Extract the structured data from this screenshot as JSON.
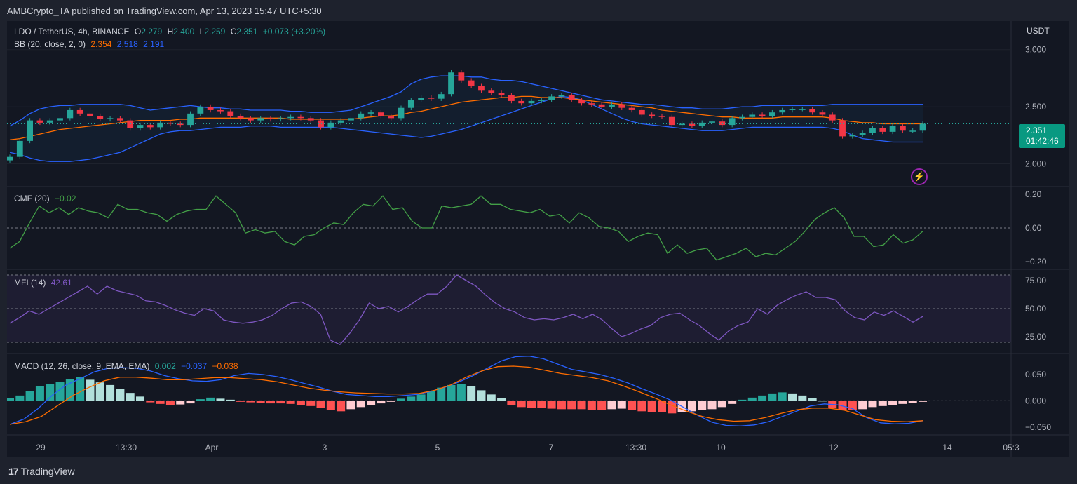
{
  "header": {
    "publish_text": "AMBCrypto_TA published on TradingView.com, Apr 13, 2023 15:47 UTC+5:30"
  },
  "main": {
    "symbol": "LDO / TetherUS, 4h, BINANCE",
    "o_label": "O",
    "o_val": "2.279",
    "h_label": "H",
    "h_val": "2.400",
    "l_label": "L",
    "l_val": "2.259",
    "c_label": "C",
    "c_val": "2.351",
    "change": "+0.073 (+3.20%)",
    "bb_label": "BB (20, close, 2, 0)",
    "bb_basis": "2.354",
    "bb_upper": "2.518",
    "bb_lower": "2.191",
    "currency": "USDT",
    "price_tag": "2.351",
    "countdown": "01:42:46"
  },
  "cmf": {
    "label": "CMF (20)",
    "value": "−0.02"
  },
  "mfi": {
    "label": "MFI (14)",
    "value": "42.61"
  },
  "macd": {
    "label": "MACD (12, 26, close, 9, EMA, EMA)",
    "macd_val": "0.002",
    "signal_val": "−0.037",
    "hist_val": "−0.038"
  },
  "footer": {
    "brand": "TradingView",
    "logo": "17"
  },
  "colors": {
    "up": "#26a69a",
    "down": "#f23645",
    "bb_band": "#2962ff",
    "bb_basis": "#ff6d00",
    "cmf": "#43a047",
    "mfi": "#7e57c2",
    "macd": "#2962ff",
    "signal": "#ff6d00"
  },
  "chart_data": [
    {
      "type": "candlestick",
      "title": "LDO / TetherUS, 4h, BINANCE",
      "ylim": [
        1.8,
        3.25
      ],
      "yticks": [
        "3.000",
        "2.500",
        "2.000"
      ],
      "xticks": [
        "29",
        "13:30",
        "Apr",
        "3",
        "5",
        "7",
        "13:30",
        "10",
        "12",
        "14",
        "05:3"
      ],
      "close": [
        2.06,
        2.2,
        2.38,
        2.36,
        2.38,
        2.4,
        2.47,
        2.44,
        2.42,
        2.39,
        2.4,
        2.38,
        2.31,
        2.34,
        2.32,
        2.36,
        2.35,
        2.34,
        2.44,
        2.5,
        2.47,
        2.46,
        2.42,
        2.4,
        2.38,
        2.4,
        2.39,
        2.4,
        2.41,
        2.4,
        2.38,
        2.32,
        2.36,
        2.38,
        2.4,
        2.44,
        2.45,
        2.42,
        2.4,
        2.49,
        2.56,
        2.58,
        2.57,
        2.61,
        2.8,
        2.73,
        2.68,
        2.64,
        2.62,
        2.6,
        2.55,
        2.53,
        2.55,
        2.56,
        2.59,
        2.6,
        2.56,
        2.53,
        2.52,
        2.5,
        2.52,
        2.49,
        2.47,
        2.43,
        2.42,
        2.41,
        2.34,
        2.35,
        2.33,
        2.36,
        2.37,
        2.34,
        2.4,
        2.41,
        2.43,
        2.42,
        2.45,
        2.47,
        2.48,
        2.48,
        2.45,
        2.43,
        2.38,
        2.24,
        2.25,
        2.27,
        2.31,
        2.28,
        2.33,
        2.29,
        2.29,
        2.35
      ],
      "bb_basis": [
        2.21,
        2.22,
        2.24,
        2.26,
        2.28,
        2.3,
        2.31,
        2.32,
        2.33,
        2.34,
        2.35,
        2.36,
        2.37,
        2.38,
        2.38,
        2.38,
        2.38,
        2.39,
        2.39,
        2.4,
        2.4,
        2.4,
        2.4,
        2.4,
        2.4,
        2.4,
        2.4,
        2.4,
        2.39,
        2.39,
        2.39,
        2.39,
        2.39,
        2.39,
        2.39,
        2.4,
        2.41,
        2.42,
        2.42,
        2.43,
        2.45,
        2.46,
        2.48,
        2.5,
        2.52,
        2.54,
        2.55,
        2.56,
        2.57,
        2.58,
        2.58,
        2.59,
        2.59,
        2.58,
        2.58,
        2.58,
        2.57,
        2.56,
        2.55,
        2.54,
        2.53,
        2.52,
        2.51,
        2.5,
        2.49,
        2.47,
        2.46,
        2.45,
        2.44,
        2.43,
        2.42,
        2.41,
        2.41,
        2.4,
        2.4,
        2.4,
        2.4,
        2.41,
        2.41,
        2.41,
        2.41,
        2.41,
        2.4,
        2.38,
        2.37,
        2.36,
        2.36,
        2.35,
        2.35,
        2.35,
        2.35,
        2.35
      ],
      "bb_upper": [
        2.33,
        2.38,
        2.44,
        2.48,
        2.5,
        2.51,
        2.51,
        2.52,
        2.52,
        2.52,
        2.52,
        2.52,
        2.51,
        2.49,
        2.47,
        2.48,
        2.49,
        2.5,
        2.51,
        2.5,
        2.49,
        2.49,
        2.48,
        2.48,
        2.47,
        2.47,
        2.47,
        2.47,
        2.46,
        2.46,
        2.45,
        2.45,
        2.45,
        2.46,
        2.47,
        2.5,
        2.53,
        2.56,
        2.59,
        2.63,
        2.7,
        2.74,
        2.76,
        2.77,
        2.77,
        2.77,
        2.76,
        2.76,
        2.74,
        2.73,
        2.73,
        2.72,
        2.7,
        2.68,
        2.66,
        2.64,
        2.62,
        2.6,
        2.58,
        2.56,
        2.55,
        2.54,
        2.53,
        2.52,
        2.52,
        2.51,
        2.5,
        2.49,
        2.49,
        2.48,
        2.48,
        2.48,
        2.49,
        2.5,
        2.5,
        2.51,
        2.51,
        2.51,
        2.51,
        2.51,
        2.51,
        2.51,
        2.52,
        2.52,
        2.52,
        2.52,
        2.52,
        2.52,
        2.52,
        2.52,
        2.52,
        2.52
      ],
      "bb_lower": [
        2.1,
        2.08,
        2.05,
        2.03,
        2.02,
        2.02,
        2.02,
        2.03,
        2.04,
        2.06,
        2.08,
        2.1,
        2.14,
        2.18,
        2.22,
        2.26,
        2.28,
        2.29,
        2.29,
        2.3,
        2.31,
        2.32,
        2.32,
        2.32,
        2.33,
        2.33,
        2.33,
        2.32,
        2.32,
        2.32,
        2.32,
        2.32,
        2.32,
        2.31,
        2.3,
        2.29,
        2.28,
        2.27,
        2.26,
        2.25,
        2.24,
        2.23,
        2.24,
        2.26,
        2.28,
        2.3,
        2.33,
        2.36,
        2.39,
        2.42,
        2.45,
        2.48,
        2.51,
        2.54,
        2.57,
        2.59,
        2.58,
        2.56,
        2.52,
        2.48,
        2.44,
        2.4,
        2.37,
        2.35,
        2.34,
        2.33,
        2.32,
        2.31,
        2.3,
        2.29,
        2.29,
        2.29,
        2.3,
        2.31,
        2.32,
        2.32,
        2.32,
        2.32,
        2.32,
        2.32,
        2.32,
        2.32,
        2.31,
        2.29,
        2.25,
        2.22,
        2.21,
        2.2,
        2.19,
        2.19,
        2.19,
        2.19
      ]
    },
    {
      "type": "line",
      "title": "CMF (20)",
      "ylim": [
        -0.22,
        0.22
      ],
      "yticks": [
        "0.20",
        "0.00",
        "−0.20"
      ],
      "values": [
        -0.12,
        -0.08,
        0.03,
        0.13,
        0.09,
        0.12,
        0.08,
        0.12,
        0.1,
        0.09,
        0.06,
        0.14,
        0.11,
        0.11,
        0.09,
        0.08,
        0.04,
        0.08,
        0.1,
        0.11,
        0.11,
        0.19,
        0.14,
        0.09,
        -0.03,
        -0.01,
        -0.03,
        -0.02,
        -0.08,
        -0.1,
        -0.05,
        -0.04,
        0.0,
        0.03,
        0.02,
        0.09,
        0.14,
        0.13,
        0.19,
        0.11,
        0.12,
        0.04,
        0.0,
        0.0,
        0.13,
        0.12,
        0.13,
        0.14,
        0.19,
        0.14,
        0.14,
        0.11,
        0.1,
        0.09,
        0.11,
        0.07,
        0.08,
        0.03,
        0.09,
        0.06,
        0.01,
        0.0,
        -0.02,
        -0.08,
        -0.05,
        -0.03,
        -0.04,
        -0.15,
        -0.1,
        -0.15,
        -0.13,
        -0.12,
        -0.19,
        -0.17,
        -0.15,
        -0.12,
        -0.17,
        -0.15,
        -0.16,
        -0.12,
        -0.08,
        -0.02,
        0.05,
        0.09,
        0.12,
        0.06,
        -0.05,
        -0.05,
        -0.11,
        -0.1,
        -0.04,
        -0.09,
        -0.07,
        -0.02
      ]
    },
    {
      "type": "line",
      "title": "MFI (14)",
      "ylim": [
        10,
        85
      ],
      "yticks": [
        "75.00",
        "50.00",
        "25.00"
      ],
      "values": [
        37,
        42,
        48,
        45,
        50,
        55,
        60,
        65,
        70,
        63,
        70,
        66,
        64,
        62,
        57,
        56,
        53,
        49,
        46,
        44,
        50,
        48,
        40,
        38,
        37,
        38,
        40,
        44,
        50,
        55,
        56,
        52,
        45,
        22,
        18,
        28,
        40,
        55,
        50,
        52,
        47,
        52,
        58,
        63,
        63,
        70,
        80,
        75,
        70,
        62,
        55,
        50,
        47,
        42,
        40,
        41,
        40,
        42,
        45,
        41,
        45,
        40,
        32,
        25,
        28,
        32,
        35,
        42,
        45,
        46,
        40,
        35,
        28,
        22,
        30,
        35,
        38,
        50,
        45,
        53,
        58,
        62,
        65,
        60,
        60,
        58,
        48,
        42,
        40,
        47,
        44,
        48,
        43,
        38,
        43
      ]
    },
    {
      "type": "bar+line",
      "title": "MACD (12, 26, close, 9, EMA, EMA)",
      "ylim": [
        -0.065,
        0.09
      ],
      "yticks": [
        "0.050",
        "0.000",
        "−0.050"
      ],
      "histogram": [
        0.005,
        0.01,
        0.018,
        0.028,
        0.032,
        0.036,
        0.041,
        0.045,
        0.04,
        0.035,
        0.03,
        0.022,
        0.015,
        0.008,
        -0.003,
        -0.006,
        -0.008,
        -0.007,
        -0.005,
        0.003,
        0.006,
        0.004,
        0.002,
        -0.002,
        -0.003,
        -0.004,
        -0.005,
        -0.005,
        -0.006,
        -0.008,
        -0.01,
        -0.014,
        -0.018,
        -0.02,
        -0.016,
        -0.012,
        -0.008,
        -0.005,
        -0.002,
        0.004,
        0.008,
        0.012,
        0.018,
        0.025,
        0.03,
        0.032,
        0.028,
        0.02,
        0.012,
        0.005,
        -0.008,
        -0.012,
        -0.014,
        -0.014,
        -0.015,
        -0.016,
        -0.016,
        -0.016,
        -0.017,
        -0.017,
        -0.016,
        -0.015,
        -0.018,
        -0.02,
        -0.022,
        -0.022,
        -0.024,
        -0.022,
        -0.02,
        -0.018,
        -0.016,
        -0.012,
        -0.006,
        0.002,
        0.006,
        0.01,
        0.014,
        0.016,
        0.014,
        0.01,
        0.005,
        0.0,
        -0.014,
        -0.018,
        -0.018,
        -0.016,
        -0.012,
        -0.01,
        -0.008,
        -0.006,
        -0.004,
        -0.002
      ],
      "macd": [
        -0.045,
        -0.035,
        -0.015,
        0.01,
        0.03,
        0.042,
        0.055,
        0.062,
        0.063,
        0.062,
        0.057,
        0.048,
        0.042,
        0.038,
        0.037,
        0.04,
        0.048,
        0.052,
        0.05,
        0.046,
        0.04,
        0.033,
        0.026,
        0.018,
        0.012,
        0.01,
        0.008,
        0.008,
        0.01,
        0.012,
        0.018,
        0.026,
        0.036,
        0.048,
        0.062,
        0.076,
        0.084,
        0.085,
        0.08,
        0.07,
        0.06,
        0.055,
        0.05,
        0.043,
        0.034,
        0.023,
        0.013,
        0.002,
        -0.013,
        -0.028,
        -0.041,
        -0.047,
        -0.048,
        -0.046,
        -0.04,
        -0.03,
        -0.02,
        -0.01,
        -0.006,
        -0.008,
        -0.015,
        -0.032,
        -0.042,
        -0.044,
        -0.043,
        -0.038
      ],
      "signal": [
        -0.045,
        -0.04,
        -0.03,
        -0.01,
        0.01,
        0.025,
        0.038,
        0.045,
        0.045,
        0.043,
        0.04,
        0.04,
        0.042,
        0.044,
        0.044,
        0.042,
        0.04,
        0.036,
        0.03,
        0.024,
        0.02,
        0.017,
        0.015,
        0.014,
        0.013,
        0.013,
        0.014,
        0.02,
        0.03,
        0.045,
        0.057,
        0.065,
        0.066,
        0.064,
        0.058,
        0.052,
        0.048,
        0.044,
        0.038,
        0.028,
        0.017,
        0.005,
        -0.008,
        -0.02,
        -0.03,
        -0.036,
        -0.039,
        -0.038,
        -0.032,
        -0.024,
        -0.017,
        -0.014,
        -0.014,
        -0.018,
        -0.027,
        -0.036,
        -0.039,
        -0.04,
        -0.038
      ]
    }
  ]
}
